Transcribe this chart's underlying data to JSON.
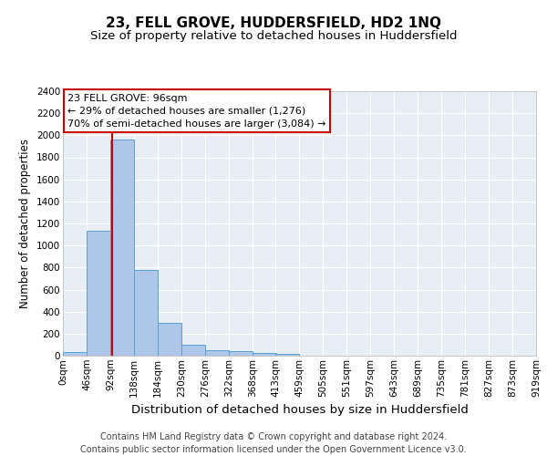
{
  "title": "23, FELL GROVE, HUDDERSFIELD, HD2 1NQ",
  "subtitle": "Size of property relative to detached houses in Huddersfield",
  "xlabel": "Distribution of detached houses by size in Huddersfield",
  "ylabel": "Number of detached properties",
  "bin_labels": [
    "0sqm",
    "46sqm",
    "92sqm",
    "138sqm",
    "184sqm",
    "230sqm",
    "276sqm",
    "322sqm",
    "368sqm",
    "413sqm",
    "459sqm",
    "505sqm",
    "551sqm",
    "597sqm",
    "643sqm",
    "689sqm",
    "735sqm",
    "781sqm",
    "827sqm",
    "873sqm",
    "919sqm"
  ],
  "bar_values": [
    35,
    1135,
    1960,
    775,
    300,
    100,
    47,
    40,
    28,
    15,
    0,
    0,
    0,
    0,
    0,
    0,
    0,
    0,
    0,
    0
  ],
  "bin_edges": [
    0,
    46,
    92,
    138,
    184,
    230,
    276,
    322,
    368,
    413,
    459,
    505,
    551,
    597,
    643,
    689,
    735,
    781,
    827,
    873,
    919
  ],
  "bar_color": "#aec6e8",
  "bar_edge_color": "#5a9fd4",
  "property_line_x": 96,
  "property_line_color": "#cc0000",
  "ylim": [
    0,
    2400
  ],
  "yticks": [
    0,
    200,
    400,
    600,
    800,
    1000,
    1200,
    1400,
    1600,
    1800,
    2000,
    2200,
    2400
  ],
  "annotation_text": "23 FELL GROVE: 96sqm\n← 29% of detached houses are smaller (1,276)\n70% of semi-detached houses are larger (3,084) →",
  "annotation_box_color": "#ffffff",
  "annotation_box_edge": "#cc0000",
  "footer_line1": "Contains HM Land Registry data © Crown copyright and database right 2024.",
  "footer_line2": "Contains public sector information licensed under the Open Government Licence v3.0.",
  "background_color": "#e8eef5",
  "grid_color": "#ffffff",
  "fig_background": "#ffffff",
  "title_fontsize": 11,
  "subtitle_fontsize": 9.5,
  "ylabel_fontsize": 8.5,
  "xlabel_fontsize": 9.5,
  "tick_fontsize": 7.5,
  "annotation_fontsize": 8,
  "footer_fontsize": 7
}
